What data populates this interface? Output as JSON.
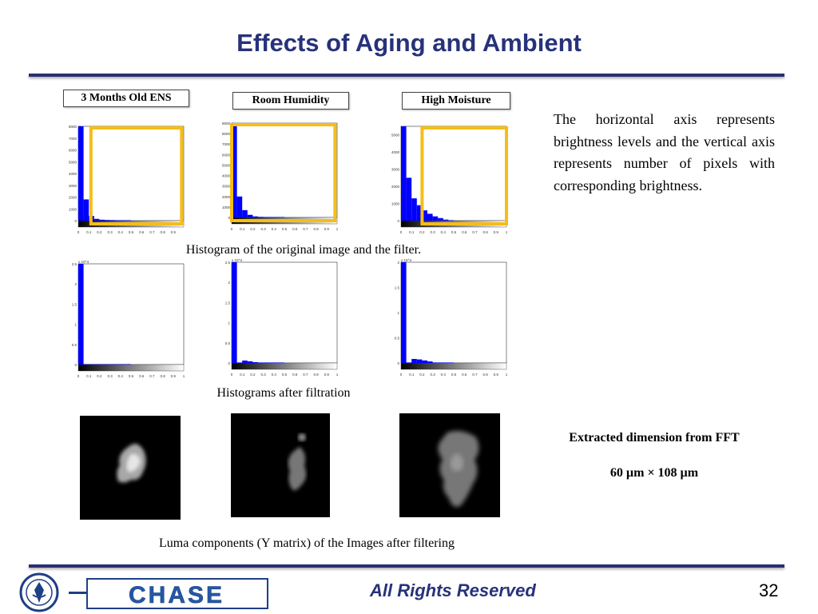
{
  "title": "Effects of Aging and Ambient",
  "column_labels": [
    "3 Months Old ENS",
    "Room Humidity",
    "High Moisture"
  ],
  "caption_top": "Histogram of the original image and the filter.",
  "caption_mid": "Histograms after filtration",
  "caption_bottom": "Luma components (Y matrix) of the Images after filtering",
  "description": "The horizontal axis represents brightness levels and the vertical axis represents number of pixels with corresponding brightness.",
  "fft_heading": "Extracted dimension from FFT",
  "fft_value": "60 µm × 108 µm",
  "footer": {
    "text": "All Rights Reserved",
    "page": "32",
    "logo_text": "CHASE"
  },
  "colors": {
    "title": "#27327a",
    "highlight": "#f5bd18",
    "histogram": "#0000ff",
    "rule": "#2a2f72"
  },
  "chart_data": [
    {
      "type": "bar",
      "title": "",
      "ylim": [
        0,
        8000
      ],
      "xlim": [
        0,
        1
      ],
      "yticks": [
        "0",
        "1000",
        "2000",
        "3000",
        "4000",
        "5000",
        "6000",
        "7000",
        "8000"
      ],
      "xticks": [
        "0",
        "0.1",
        "0.2",
        "0.3",
        "0.4",
        "0.5",
        "0.6",
        "0.7",
        "0.8",
        "0.9"
      ],
      "highlight": [
        0.12,
        0.98
      ],
      "values": [
        8000,
        1800,
        400,
        150,
        80,
        60,
        50,
        40,
        30,
        20
      ]
    },
    {
      "type": "bar",
      "title": "",
      "ylim": [
        0,
        9000
      ],
      "xlim": [
        0,
        1
      ],
      "yticks": [
        "0",
        "1000",
        "2000",
        "3000",
        "4000",
        "5000",
        "6000",
        "7000",
        "8000",
        "9000"
      ],
      "xticks": [
        "0",
        "0.1",
        "0.2",
        "0.3",
        "0.4",
        "0.5",
        "0.6",
        "0.7",
        "0.8",
        "0.9",
        "1"
      ],
      "highlight": [
        0.0,
        0.98
      ],
      "values": [
        9000,
        2000,
        700,
        250,
        100,
        60,
        40,
        30,
        20,
        10
      ]
    },
    {
      "type": "bar",
      "title": "",
      "ylim": [
        0,
        5500
      ],
      "xlim": [
        0,
        1
      ],
      "yticks": [
        "0",
        "1000",
        "2000",
        "3000",
        "4000",
        "5000"
      ],
      "xticks": [
        "0",
        "0.1",
        "0.2",
        "0.3",
        "0.4",
        "0.5",
        "0.6",
        "0.7",
        "0.8",
        "0.9",
        "1"
      ],
      "highlight": [
        0.2,
        1.0
      ],
      "values": [
        5500,
        2500,
        1300,
        900,
        600,
        400,
        250,
        150,
        60,
        20
      ]
    },
    {
      "type": "bar",
      "title": "",
      "ylim": [
        0,
        2.5
      ],
      "xlim": [
        0,
        1
      ],
      "scale": "x 10^4",
      "yticks": [
        "0",
        "0.5",
        "1",
        "1.5",
        "2",
        "2.5"
      ],
      "xticks": [
        "0",
        "0.1",
        "0.2",
        "0.3",
        "0.4",
        "0.5",
        "0.6",
        "0.7",
        "0.8",
        "0.9",
        "1"
      ],
      "values": [
        2.5,
        0.01,
        0.01,
        0.01,
        0.005,
        0.005,
        0.005,
        0,
        0,
        0
      ]
    },
    {
      "type": "bar",
      "title": "",
      "ylim": [
        0,
        2.5
      ],
      "xlim": [
        0,
        1
      ],
      "scale": "x 10^4",
      "yticks": [
        "0",
        "0.5",
        "1",
        "1.5",
        "2",
        "2.5"
      ],
      "xticks": [
        "0",
        "0.1",
        "0.2",
        "0.3",
        "0.4",
        "0.5",
        "0.6",
        "0.7",
        "0.8",
        "0.9",
        "1"
      ],
      "values": [
        2.5,
        0.01,
        0.06,
        0.04,
        0.02,
        0.01,
        0.005,
        0,
        0,
        0
      ]
    },
    {
      "type": "bar",
      "title": "",
      "ylim": [
        0,
        2
      ],
      "xlim": [
        0,
        1
      ],
      "scale": "x 10^4",
      "yticks": [
        "0",
        "0.5",
        "1",
        "1.5",
        "2"
      ],
      "xticks": [
        "0",
        "0.1",
        "0.2",
        "0.3",
        "0.4",
        "0.5",
        "0.6",
        "0.7",
        "0.8",
        "0.9",
        "1"
      ],
      "values": [
        2.0,
        0.01,
        0.08,
        0.07,
        0.05,
        0.03,
        0.01,
        0,
        0,
        0
      ]
    }
  ]
}
